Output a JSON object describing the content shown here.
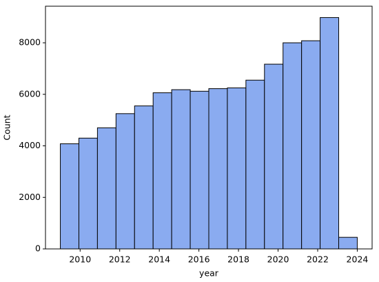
{
  "chart_data": {
    "type": "histogram",
    "x_label": "year",
    "y_label": "Count",
    "bins": [
      2009,
      2009.9375,
      2010.875,
      2011.8125,
      2012.75,
      2013.6875,
      2014.625,
      2015.5625,
      2016.5,
      2017.4375,
      2018.375,
      2019.3125,
      2020.25,
      2021.1875,
      2022.125,
      2023.0625,
      2024
    ],
    "values": [
      4080,
      4300,
      4700,
      5250,
      5550,
      6060,
      6180,
      6120,
      6220,
      6250,
      6550,
      7170,
      8000,
      8080,
      8980,
      450
    ],
    "color": "#8aabf0",
    "xlim": [
      2008.25,
      2024.75
    ],
    "xticks": [
      2010,
      2012,
      2014,
      2016,
      2018,
      2020,
      2022,
      2024
    ],
    "ylim": [
      0,
      9420
    ],
    "yticks": [
      0,
      2000,
      4000,
      6000,
      8000
    ]
  }
}
